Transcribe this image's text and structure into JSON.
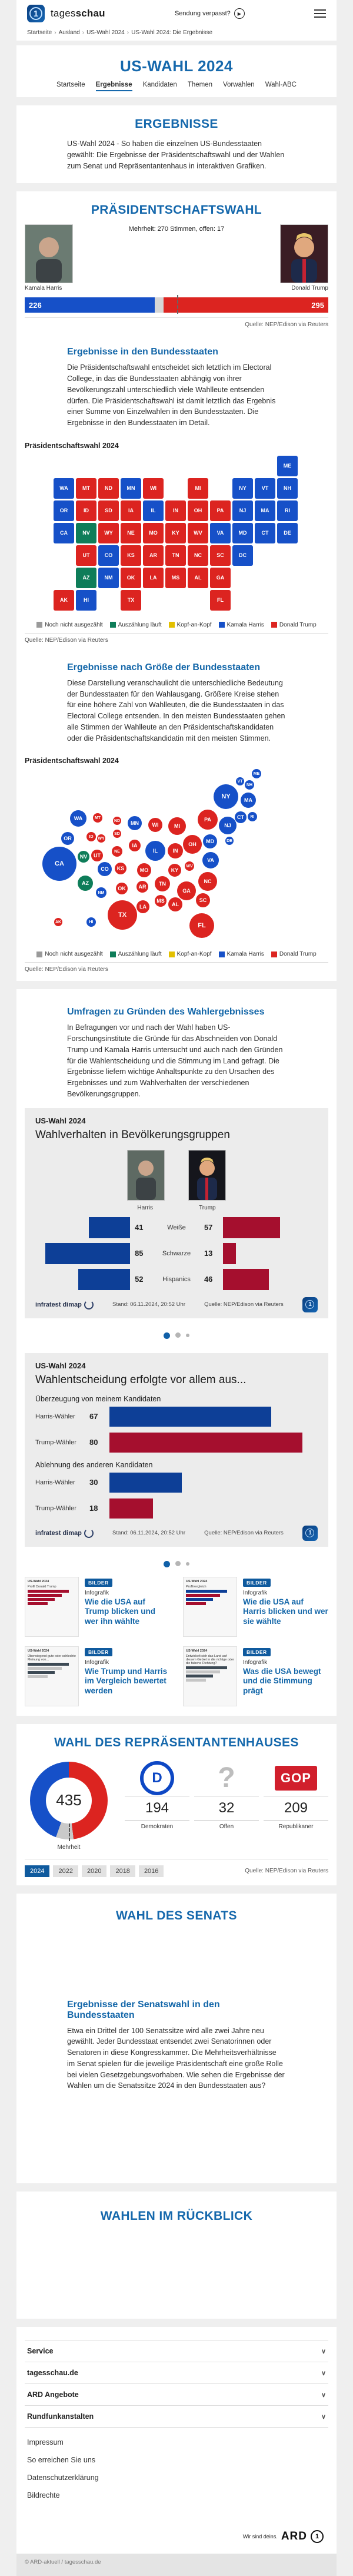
{
  "header": {
    "brand_tages": "tages",
    "brand_schau": "schau",
    "missed_show": "Sendung verpasst?",
    "menu_icon": "hamburger-icon",
    "play_icon": "play-icon"
  },
  "breadcrumb": {
    "items": [
      "Startseite",
      "Ausland",
      "US-Wahl 2024",
      "US-Wahl 2024: Die Ergebnisse"
    ]
  },
  "hero": {
    "title": "US-WAHL 2024",
    "tabs": [
      {
        "label": "Startseite",
        "active": false
      },
      {
        "label": "Ergebnisse",
        "active": true
      },
      {
        "label": "Kandidaten",
        "active": false
      },
      {
        "label": "Themen",
        "active": false
      },
      {
        "label": "Vorwahlen",
        "active": false
      },
      {
        "label": "Wahl-ABC",
        "active": false
      }
    ]
  },
  "results_intro": {
    "title": "ERGEBNISSE",
    "text": "US-Wahl 2024 - So haben die einzelnen US-Bundesstaaten gewählt: Die Ergebnisse der Präsidentschaftswahl und der Wahlen zum Senat und Repräsentantenhaus in interaktiven Grafiken."
  },
  "president": {
    "title": "PRÄSIDENTSCHAFTSWAHL",
    "subtitle": "Mehrheit: 270 Stimmen, offen: 17",
    "harris_name": "Kamala Harris",
    "trump_name": "Donald Trump",
    "harris_votes": 226,
    "trump_votes": 295,
    "open_votes": 17,
    "majority": 270,
    "total": 538,
    "source": "Quelle: NEP/Edison via Reuters"
  },
  "states_section": {
    "title": "Ergebnisse in den Bundesstaaten",
    "text": "Die Präsidentschaftswahl entscheidet sich letztlich im Electoral College, in das die Bundesstaaten abhängig von ihrer Bevölkerungszahl unterschiedlich viele Wahlleute entsenden dürfen. Die Präsidentschaftswahl ist damit letztlich das Ergebnis einer Summe von Einzelwahlen in den Bundesstaaten. Die Ergebnisse in den Bundesstaaten im Detail.",
    "chart_label": "Präsidentschaftswahl 2024",
    "source": "Quelle: NEP/Edison via Reuters"
  },
  "size_section": {
    "title": "Ergebnisse nach Größe der Bundesstaaten",
    "text": "Diese Darstellung veranschaulicht die unterschiedliche Bedeutung der Bundesstaaten für den Wahlausgang. Größere Kreise stehen für eine höhere Zahl von Wahlleuten, die die Bundesstaaten in das Electoral College entsenden. In den meisten Bundesstaaten gehen alle Stimmen der Wahlleute an den Präsidentschaftskandidaten oder die Präsidentschaftskandidatin mit den meisten Stimmen.",
    "chart_label": "Präsidentschaftswahl 2024",
    "source": "Quelle: NEP/Edison via Reuters"
  },
  "legend": {
    "items": [
      {
        "label": "Noch nicht ausgezählt",
        "color": "#9a9a9a"
      },
      {
        "label": "Auszählung läuft",
        "color": "#0e7d59"
      },
      {
        "label": "Kopf-an-Kopf",
        "color": "#e3c000"
      },
      {
        "label": "Kamala Harris",
        "color": "#1650c8"
      },
      {
        "label": "Donald Trump",
        "color": "#dc2420"
      }
    ]
  },
  "polls_section": {
    "title": "Umfragen zu Gründen des Wahlergebnisses",
    "text": "In Befragungen vor und nach der Wahl haben US-Forschungsinstitute die Gründe für das Abschneiden von Donald Trump und Kamala Harris untersucht und auch nach den Gründen für die Wahlentscheidung und die Stimmung im Land gefragt. Die Ergebnisse liefern wichtige Anhaltspunkte zu den Ursachen des Ergebnisses und zum Wahlverhalten der verschiedenen Bevölkerungsgruppen."
  },
  "card1": {
    "kicker": "US-Wahl 2024",
    "title": "Wahlverhalten in Bevölkerungsgruppen",
    "harris_label": "Harris",
    "trump_label": "Trump",
    "stand": "Stand:  06.11.2024, 20:52 Uhr",
    "source": "Quelle: NEP/Edison via Reuters",
    "provider": "infratest dimap"
  },
  "card2": {
    "kicker": "US-Wahl 2024",
    "title": "Wahlentscheidung erfolgte vor allem aus...",
    "stand": "Stand:  06.11.2024, 20:52 Uhr",
    "source": "Quelle: NEP/Edison via Reuters",
    "provider": "infratest dimap"
  },
  "teasers": [
    {
      "badge": "BILDER",
      "kind": "Infografik",
      "title": "Wie die USA auf Trump blicken und wer ihn wählte",
      "thumb_kicker": "US-Wahl 2024",
      "thumb_title": "Profil Donald Trump",
      "variant": "red-bars"
    },
    {
      "badge": "BILDER",
      "kind": "Infografik",
      "title": "Wie die USA auf Harris blicken und wer sie wählte",
      "thumb_kicker": "US-Wahl 2024",
      "thumb_title": "Profilvergleich",
      "variant": "duel-bars"
    },
    {
      "badge": "BILDER",
      "kind": "Infografik",
      "title": "Wie Trump und Harris im Vergleich bewertet werden",
      "thumb_kicker": "US-Wahl 2024",
      "thumb_title": "Überwiegend gute oder schlechte Meinung von...",
      "variant": "photo-bars"
    },
    {
      "badge": "BILDER",
      "kind": "Infografik",
      "title": "Was die USA bewegt und die Stimmung prägt",
      "thumb_kicker": "US-Wahl 2024",
      "thumb_title": "Entwickelt sich das Land auf diesem Gebiet in die richtige oder die falsche Richtung?",
      "variant": "gray-bars"
    }
  ],
  "house": {
    "title": "WAHL DES REPRÄSENTANTENHAUSES",
    "majority_label": "Mehrheit",
    "source": "Quelle: NEP/Edison via Reuters",
    "years": [
      "2024",
      "2022",
      "2020",
      "2018",
      "2016"
    ],
    "active_year": "2024"
  },
  "senate": {
    "title": "WAHL DES SENATS",
    "sub_title": "Ergebnisse der Senatswahl in den Bundesstaaten",
    "text": "Etwa ein Drittel der 100 Senatssitze wird alle zwei Jahre neu gewählt. Jeder Bundesstaat entsendet zwei Senatorinnen oder Senatoren in diese Kongresskammer. Die Mehrheitsverhältnisse im Senat spielen für die jeweilige Präsidentschaft eine große Rolle bei vielen Gesetzgebungsvorhaben. Wie sehen die Ergebnisse der Wahlen um die Senatssitze 2024 in den Bundesstaaten aus?"
  },
  "review": {
    "title": "WAHLEN IM RÜCKBLICK"
  },
  "footer": {
    "accordion": [
      "Service",
      "tagesschau.de",
      "ARD Angebote",
      "Rundfunkanstalten"
    ],
    "links": [
      "Impressum",
      "So erreichen Sie uns",
      "Datenschutzerklärung",
      "Bildrechte"
    ],
    "tagline": "Wir sind deins.",
    "brand": "ARD",
    "copyright": "© ARD-aktuell / tagesschau.de"
  },
  "colors": {
    "harris": "#1650c8",
    "trump": "#dc2420",
    "counting": "#0e7d59",
    "open": "#d6d6d6",
    "tossup": "#e3c000",
    "navy": "#0d3f97",
    "crimson": "#a50f2e",
    "gray": "#c9c9c9"
  },
  "chart_data": [
    {
      "type": "heatmap",
      "name": "president-state-map",
      "title": "Präsidentschaftswahl 2024",
      "legend": [
        "Noch nicht ausgezählt",
        "Auszählung läuft",
        "Kopf-an-Kopf",
        "Kamala Harris",
        "Donald Trump"
      ],
      "tiles": [
        {
          "s": "ME",
          "c": 10,
          "r": 0,
          "w": "h"
        },
        {
          "s": "WA",
          "c": 0,
          "r": 1,
          "w": "h"
        },
        {
          "s": "MT",
          "c": 1,
          "r": 1,
          "w": "t"
        },
        {
          "s": "ND",
          "c": 2,
          "r": 1,
          "w": "t"
        },
        {
          "s": "MN",
          "c": 3,
          "r": 1,
          "w": "h"
        },
        {
          "s": "WI",
          "c": 4,
          "r": 1,
          "w": "t"
        },
        {
          "s": "MI",
          "c": 6,
          "r": 1,
          "w": "t"
        },
        {
          "s": "NY",
          "c": 8,
          "r": 1,
          "w": "h"
        },
        {
          "s": "VT",
          "c": 9,
          "r": 1,
          "w": "h"
        },
        {
          "s": "NH",
          "c": 10,
          "r": 1,
          "w": "h"
        },
        {
          "s": "OR",
          "c": 0,
          "r": 2,
          "w": "h"
        },
        {
          "s": "ID",
          "c": 1,
          "r": 2,
          "w": "t"
        },
        {
          "s": "SD",
          "c": 2,
          "r": 2,
          "w": "t"
        },
        {
          "s": "IA",
          "c": 3,
          "r": 2,
          "w": "t"
        },
        {
          "s": "IL",
          "c": 4,
          "r": 2,
          "w": "h"
        },
        {
          "s": "IN",
          "c": 5,
          "r": 2,
          "w": "t"
        },
        {
          "s": "OH",
          "c": 6,
          "r": 2,
          "w": "t"
        },
        {
          "s": "PA",
          "c": 7,
          "r": 2,
          "w": "t"
        },
        {
          "s": "NJ",
          "c": 8,
          "r": 2,
          "w": "h"
        },
        {
          "s": "MA",
          "c": 9,
          "r": 2,
          "w": "h"
        },
        {
          "s": "RI",
          "c": 10,
          "r": 2,
          "w": "h"
        },
        {
          "s": "CA",
          "c": 0,
          "r": 3,
          "w": "h"
        },
        {
          "s": "NV",
          "c": 1,
          "r": 3,
          "w": "c"
        },
        {
          "s": "WY",
          "c": 2,
          "r": 3,
          "w": "t"
        },
        {
          "s": "NE",
          "c": 3,
          "r": 3,
          "w": "t"
        },
        {
          "s": "MO",
          "c": 4,
          "r": 3,
          "w": "t"
        },
        {
          "s": "KY",
          "c": 5,
          "r": 3,
          "w": "t"
        },
        {
          "s": "WV",
          "c": 6,
          "r": 3,
          "w": "t"
        },
        {
          "s": "VA",
          "c": 7,
          "r": 3,
          "w": "h"
        },
        {
          "s": "MD",
          "c": 8,
          "r": 3,
          "w": "h"
        },
        {
          "s": "CT",
          "c": 9,
          "r": 3,
          "w": "h"
        },
        {
          "s": "DE",
          "c": 10,
          "r": 3,
          "w": "h"
        },
        {
          "s": "UT",
          "c": 1,
          "r": 4,
          "w": "t"
        },
        {
          "s": "CO",
          "c": 2,
          "r": 4,
          "w": "h"
        },
        {
          "s": "KS",
          "c": 3,
          "r": 4,
          "w": "t"
        },
        {
          "s": "AR",
          "c": 4,
          "r": 4,
          "w": "t"
        },
        {
          "s": "TN",
          "c": 5,
          "r": 4,
          "w": "t"
        },
        {
          "s": "NC",
          "c": 6,
          "r": 4,
          "w": "t"
        },
        {
          "s": "SC",
          "c": 7,
          "r": 4,
          "w": "t"
        },
        {
          "s": "DC",
          "c": 8,
          "r": 4,
          "w": "h"
        },
        {
          "s": "AZ",
          "c": 1,
          "r": 5,
          "w": "c"
        },
        {
          "s": "NM",
          "c": 2,
          "r": 5,
          "w": "h"
        },
        {
          "s": "OK",
          "c": 3,
          "r": 5,
          "w": "t"
        },
        {
          "s": "LA",
          "c": 4,
          "r": 5,
          "w": "t"
        },
        {
          "s": "MS",
          "c": 5,
          "r": 5,
          "w": "t"
        },
        {
          "s": "AL",
          "c": 6,
          "r": 5,
          "w": "t"
        },
        {
          "s": "GA",
          "c": 7,
          "r": 5,
          "w": "t"
        },
        {
          "s": "AK",
          "c": 0,
          "r": 6,
          "w": "t"
        },
        {
          "s": "HI",
          "c": 1,
          "r": 6,
          "w": "h"
        },
        {
          "s": "TX",
          "c": 3,
          "r": 6,
          "w": "t"
        },
        {
          "s": "FL",
          "c": 7,
          "r": 6,
          "w": "t"
        }
      ]
    },
    {
      "type": "scatter",
      "name": "electoral-college-bubbles",
      "title": "Präsidentschaftswahl 2024",
      "note": "bubble area proportional to electoral votes",
      "points": [
        {
          "s": "ME",
          "ev": 4,
          "x": 408,
          "y": 7,
          "w": "h"
        },
        {
          "s": "VT",
          "ev": 3,
          "x": 380,
          "y": 20,
          "w": "h"
        },
        {
          "s": "NH",
          "ev": 4,
          "x": 396,
          "y": 26,
          "w": "h"
        },
        {
          "s": "NY",
          "ev": 28,
          "x": 356,
          "y": 46,
          "w": "h"
        },
        {
          "s": "MA",
          "ev": 11,
          "x": 394,
          "y": 52,
          "w": "h"
        },
        {
          "s": "CT",
          "ev": 7,
          "x": 381,
          "y": 81,
          "w": "h"
        },
        {
          "s": "RI",
          "ev": 4,
          "x": 401,
          "y": 80,
          "w": "h"
        },
        {
          "s": "PA",
          "ev": 19,
          "x": 325,
          "y": 85,
          "w": "t"
        },
        {
          "s": "NJ",
          "ev": 14,
          "x": 359,
          "y": 95,
          "w": "h"
        },
        {
          "s": "WA",
          "ev": 12,
          "x": 105,
          "y": 83,
          "w": "h"
        },
        {
          "s": "MT",
          "ev": 4,
          "x": 138,
          "y": 82,
          "w": "t"
        },
        {
          "s": "ND",
          "ev": 3,
          "x": 171,
          "y": 87,
          "w": "t"
        },
        {
          "s": "MN",
          "ev": 10,
          "x": 201,
          "y": 91,
          "w": "h"
        },
        {
          "s": "WI",
          "ev": 10,
          "x": 236,
          "y": 94,
          "w": "t"
        },
        {
          "s": "MI",
          "ev": 15,
          "x": 273,
          "y": 96,
          "w": "t"
        },
        {
          "s": "OR",
          "ev": 8,
          "x": 87,
          "y": 117,
          "w": "h"
        },
        {
          "s": "ID",
          "ev": 4,
          "x": 127,
          "y": 114,
          "w": "t"
        },
        {
          "s": "WY",
          "ev": 3,
          "x": 144,
          "y": 117,
          "w": "t"
        },
        {
          "s": "SD",
          "ev": 3,
          "x": 171,
          "y": 109,
          "w": "t"
        },
        {
          "s": "IA",
          "ev": 6,
          "x": 201,
          "y": 129,
          "w": "t"
        },
        {
          "s": "IL",
          "ev": 19,
          "x": 236,
          "y": 138,
          "w": "h"
        },
        {
          "s": "IN",
          "ev": 11,
          "x": 270,
          "y": 138,
          "w": "t"
        },
        {
          "s": "OH",
          "ev": 17,
          "x": 299,
          "y": 127,
          "w": "t"
        },
        {
          "s": "MD",
          "ev": 10,
          "x": 329,
          "y": 122,
          "w": "h"
        },
        {
          "s": "DE",
          "ev": 3,
          "x": 362,
          "y": 121,
          "w": "h"
        },
        {
          "s": "CA",
          "ev": 54,
          "x": 73,
          "y": 160,
          "w": "h"
        },
        {
          "s": "NV",
          "ev": 6,
          "x": 114,
          "y": 148,
          "w": "c"
        },
        {
          "s": "UT",
          "ev": 6,
          "x": 137,
          "y": 146,
          "w": "t"
        },
        {
          "s": "NE",
          "ev": 5,
          "x": 171,
          "y": 139,
          "w": "t"
        },
        {
          "s": "CO",
          "ev": 10,
          "x": 150,
          "y": 169,
          "w": "h"
        },
        {
          "s": "KS",
          "ev": 6,
          "x": 177,
          "y": 168,
          "w": "t"
        },
        {
          "s": "MO",
          "ev": 10,
          "x": 217,
          "y": 171,
          "w": "t"
        },
        {
          "s": "KY",
          "ev": 8,
          "x": 269,
          "y": 171,
          "w": "t"
        },
        {
          "s": "WV",
          "ev": 4,
          "x": 294,
          "y": 164,
          "w": "t"
        },
        {
          "s": "VA",
          "ev": 13,
          "x": 330,
          "y": 154,
          "w": "h"
        },
        {
          "s": "AZ",
          "ev": 11,
          "x": 117,
          "y": 193,
          "w": "c"
        },
        {
          "s": "NM",
          "ev": 5,
          "x": 144,
          "y": 209,
          "w": "h"
        },
        {
          "s": "OK",
          "ev": 7,
          "x": 179,
          "y": 202,
          "w": "t"
        },
        {
          "s": "AR",
          "ev": 6,
          "x": 214,
          "y": 199,
          "w": "t"
        },
        {
          "s": "TN",
          "ev": 11,
          "x": 248,
          "y": 194,
          "w": "t"
        },
        {
          "s": "NC",
          "ev": 16,
          "x": 325,
          "y": 190,
          "w": "t"
        },
        {
          "s": "SC",
          "ev": 9,
          "x": 317,
          "y": 222,
          "w": "t"
        },
        {
          "s": "GA",
          "ev": 16,
          "x": 289,
          "y": 206,
          "w": "t"
        },
        {
          "s": "MS",
          "ev": 6,
          "x": 245,
          "y": 223,
          "w": "t"
        },
        {
          "s": "AL",
          "ev": 9,
          "x": 270,
          "y": 229,
          "w": "t"
        },
        {
          "s": "LA",
          "ev": 8,
          "x": 215,
          "y": 233,
          "w": "t"
        },
        {
          "s": "TX",
          "ev": 40,
          "x": 180,
          "y": 247,
          "w": "t"
        },
        {
          "s": "FL",
          "ev": 30,
          "x": 315,
          "y": 265,
          "w": "t"
        },
        {
          "s": "AK",
          "ev": 3,
          "x": 71,
          "y": 259,
          "w": "t"
        },
        {
          "s": "HI",
          "ev": 4,
          "x": 127,
          "y": 259,
          "w": "h"
        }
      ]
    },
    {
      "type": "bar",
      "name": "demographics",
      "title": "Wahlverhalten in Bevölkerungsgruppen",
      "categories": [
        "Weiße",
        "Schwarze",
        "Hispanics"
      ],
      "series": [
        {
          "name": "Harris",
          "values": [
            41,
            85,
            52
          ]
        },
        {
          "name": "Trump",
          "values": [
            57,
            13,
            46
          ]
        }
      ]
    },
    {
      "type": "bar",
      "name": "decision-reasons",
      "title": "Wahlentscheidung erfolgte vor allem aus...",
      "groups": [
        {
          "label": "Überzeugung von meinem Kandidaten",
          "rows": [
            {
              "label": "Harris-Wähler",
              "value": 67,
              "party": "h"
            },
            {
              "label": "Trump-Wähler",
              "value": 80,
              "party": "t"
            }
          ]
        },
        {
          "label": "Ablehnung des anderen Kandidaten",
          "rows": [
            {
              "label": "Harris-Wähler",
              "value": 30,
              "party": "h"
            },
            {
              "label": "Trump-Wähler",
              "value": 18,
              "party": "t"
            }
          ]
        }
      ]
    },
    {
      "type": "pie",
      "name": "house-donut",
      "title": "WAHL DES REPRÄSENTANTENHAUSES",
      "total": 435,
      "slices": [
        {
          "label": "Demokraten",
          "value": 194,
          "logo": "democrat-d-logo"
        },
        {
          "label": "Offen",
          "value": 32,
          "logo": "question-mark"
        },
        {
          "label": "Republikaner",
          "value": 209,
          "logo": "gop-logo"
        }
      ]
    },
    {
      "type": "bar",
      "name": "president-total",
      "categories": [
        "Kamala Harris",
        "offen",
        "Donald Trump"
      ],
      "values": [
        226,
        17,
        295
      ],
      "majority": 270
    }
  ]
}
